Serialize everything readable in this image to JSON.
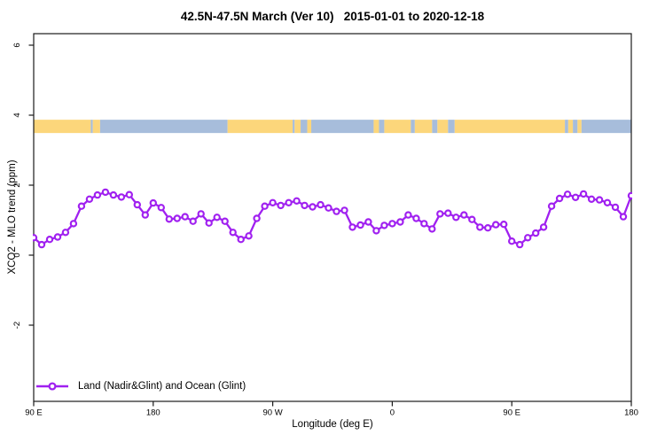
{
  "title": "42.5N-47.5N March (Ver 10)   2015-01-01 to 2020-12-18",
  "chart_data": {
    "type": "line",
    "title": "42.5N-47.5N March (Ver 10)   2015-01-01 to 2020-12-18",
    "xlabel": "Longitude (deg E)",
    "ylabel": "XCO2 - MLO trend (ppm)",
    "grid": false,
    "xlim": [
      90,
      540
    ],
    "ylim": [
      -4.2,
      6.3
    ],
    "x_ticks": [
      {
        "label": "90 E",
        "lon": 90
      },
      {
        "label": "180",
        "lon": 180
      },
      {
        "label": "90 W",
        "lon": 270
      },
      {
        "label": "0",
        "lon": 360
      },
      {
        "label": "90 E",
        "lon": 450
      },
      {
        "label": "180",
        "lon": 540
      }
    ],
    "y_ticks": [
      {
        "label": "6",
        "value": 6
      },
      {
        "label": "4",
        "value": 4
      },
      {
        "label": "2",
        "value": 2
      },
      {
        "label": "0",
        "value": 0
      },
      {
        "label": "-2",
        "value": -2
      }
    ],
    "legend": {
      "position": "bottom-left",
      "entries": [
        {
          "label": "Land (Nadir&Glint) and Ocean (Glint)",
          "color": "#A020F0",
          "marker": "open-circle"
        }
      ]
    },
    "series": [
      {
        "name": "Land (Nadir&Glint) and Ocean (Glint)",
        "color": "#A020F0",
        "lon_start": 90,
        "lon_step": 6,
        "values": [
          0.5,
          0.3,
          0.45,
          0.52,
          0.65,
          0.9,
          1.4,
          1.6,
          1.72,
          1.8,
          1.72,
          1.66,
          1.73,
          1.44,
          1.15,
          1.49,
          1.36,
          1.03,
          1.05,
          1.1,
          0.97,
          1.18,
          0.92,
          1.08,
          0.97,
          0.65,
          0.45,
          0.55,
          1.05,
          1.4,
          1.5,
          1.42,
          1.5,
          1.55,
          1.42,
          1.38,
          1.44,
          1.35,
          1.25,
          1.28,
          0.8,
          0.86,
          0.95,
          0.7,
          0.85,
          0.9,
          0.95,
          1.15,
          1.05,
          0.9,
          0.75,
          1.18,
          1.2,
          1.08,
          1.15,
          1.02,
          0.8,
          0.78,
          0.87,
          0.88,
          0.4,
          0.3,
          0.5,
          0.63,
          0.8,
          1.4,
          1.62,
          1.74,
          1.65,
          1.75,
          1.6,
          1.58,
          1.5,
          1.37,
          1.1,
          1.7
        ]
      }
    ],
    "map_strip": {
      "description": "land/ocean map band drawn across plot near y = 3.5-3.9 ppm",
      "y_range_ppm": [
        3.49,
        3.87
      ],
      "land_color": "#FCD67B",
      "ocean_color": "#A7BDDB",
      "segments": [
        {
          "from": 90,
          "to": 133,
          "surface": "land"
        },
        {
          "from": 133,
          "to": 134.5,
          "surface": "ocean"
        },
        {
          "from": 134.5,
          "to": 140,
          "surface": "land"
        },
        {
          "from": 140,
          "to": 236,
          "surface": "ocean"
        },
        {
          "from": 236,
          "to": 285,
          "surface": "land"
        },
        {
          "from": 285,
          "to": 286.5,
          "surface": "ocean"
        },
        {
          "from": 286.5,
          "to": 291,
          "surface": "land"
        },
        {
          "from": 291,
          "to": 296,
          "surface": "ocean"
        },
        {
          "from": 296,
          "to": 299,
          "surface": "land"
        },
        {
          "from": 299,
          "to": 346,
          "surface": "ocean"
        },
        {
          "from": 346,
          "to": 350,
          "surface": "land"
        },
        {
          "from": 350,
          "to": 354,
          "surface": "ocean"
        },
        {
          "from": 354,
          "to": 374,
          "surface": "land"
        },
        {
          "from": 374,
          "to": 377,
          "surface": "ocean"
        },
        {
          "from": 377,
          "to": 390,
          "surface": "land"
        },
        {
          "from": 390,
          "to": 394,
          "surface": "ocean"
        },
        {
          "from": 394,
          "to": 402,
          "surface": "land"
        },
        {
          "from": 402,
          "to": 407,
          "surface": "ocean"
        },
        {
          "from": 407,
          "to": 490,
          "surface": "land"
        },
        {
          "from": 490,
          "to": 492.5,
          "surface": "ocean"
        },
        {
          "from": 492.5,
          "to": 496,
          "surface": "land"
        },
        {
          "from": 496,
          "to": 499.5,
          "surface": "ocean"
        },
        {
          "from": 499.5,
          "to": 502.5,
          "surface": "land"
        },
        {
          "from": 502.5,
          "to": 540,
          "surface": "ocean"
        }
      ]
    }
  },
  "colors": {
    "series": "#A020F0",
    "land": "#FCD67B",
    "ocean": "#A7BDDB",
    "axis": "#1a1a1a",
    "text": "#000000",
    "background": "#ffffff"
  }
}
